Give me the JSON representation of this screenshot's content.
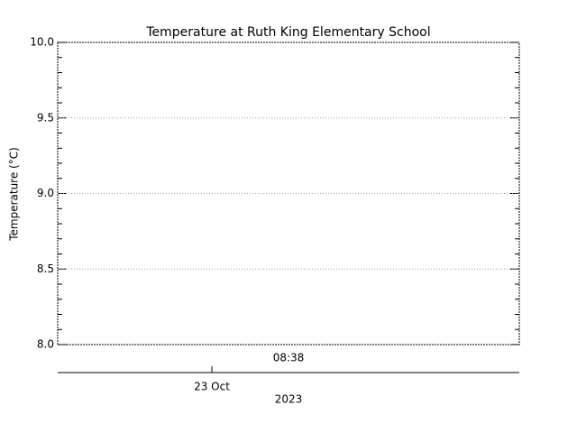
{
  "chart_data": {
    "type": "line",
    "title": "Temperature at Ruth King Elementary School",
    "ylabel": "Temperature (°C)",
    "time_label": "08:38",
    "categories": [
      "23 Oct"
    ],
    "xlabel": "2023",
    "ylim": [
      8,
      10
    ],
    "yticks": [
      {
        "value": 8,
        "label": "8.0"
      },
      8.5,
      {
        "value": 9,
        "label": "9.0"
      },
      9.5,
      {
        "value": 10,
        "label": "10.0"
      }
    ],
    "grid": true,
    "series": []
  }
}
